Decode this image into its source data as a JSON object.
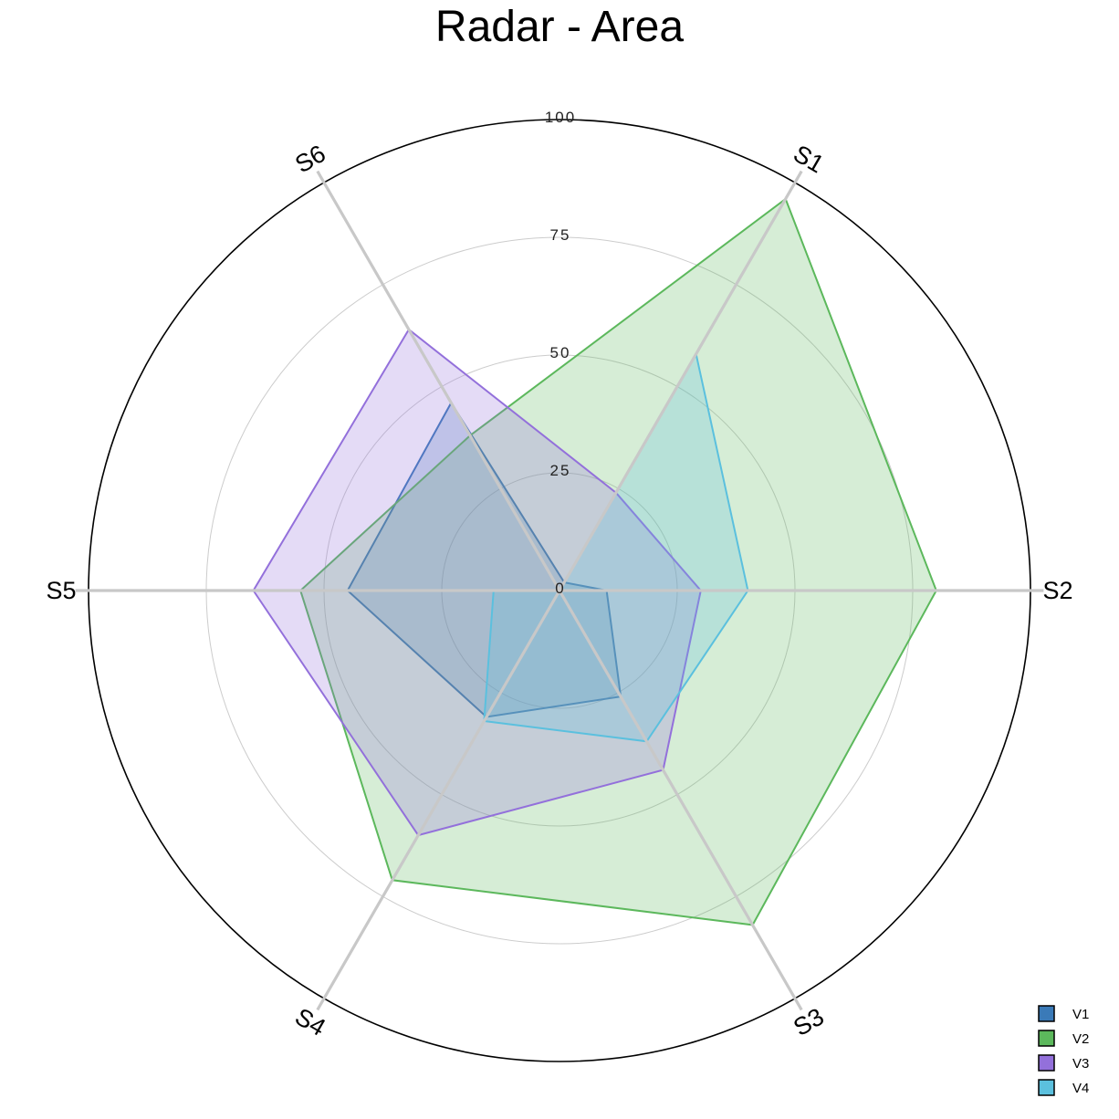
{
  "chart_data": {
    "type": "radar",
    "title": "Radar - Area",
    "categories": [
      "S1",
      "S2",
      "S3",
      "S4",
      "S5",
      "S6"
    ],
    "rlim": [
      0,
      100
    ],
    "r_ticks": [
      0,
      25,
      50,
      75,
      100
    ],
    "grid": true,
    "legend_position": "bottom-right",
    "series": [
      {
        "name": "V1",
        "color": "#3a7ab8",
        "values": [
          2,
          10,
          26,
          31,
          45,
          46
        ]
      },
      {
        "name": "V2",
        "color": "#5cb85c",
        "values": [
          96,
          80,
          82,
          71,
          55,
          38
        ]
      },
      {
        "name": "V3",
        "color": "#9370db",
        "values": [
          24,
          30,
          44,
          60,
          65,
          64
        ]
      },
      {
        "name": "V4",
        "color": "#5bc0de",
        "values": [
          58,
          40,
          37,
          32,
          14,
          0
        ]
      }
    ]
  }
}
